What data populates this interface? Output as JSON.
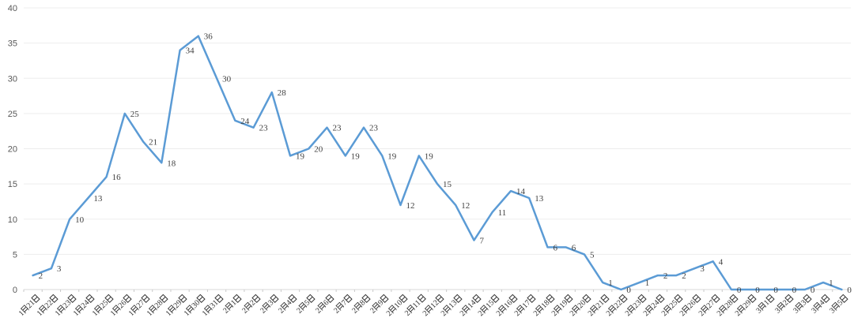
{
  "chart_data": {
    "type": "line",
    "title": "",
    "xlabel": "",
    "ylabel": "",
    "categories": [
      "1月21日",
      "1月22日",
      "1月23日",
      "1月24日",
      "1月25日",
      "1月26日",
      "1月27日",
      "1月28日",
      "1月29日",
      "1月30日",
      "1月31日",
      "2月1日",
      "2月2日",
      "2月3日",
      "2月4日",
      "2月5日",
      "2月6日",
      "2月7日",
      "2月8日",
      "2月9日",
      "2月10日",
      "2月11日",
      "2月12日",
      "2月13日",
      "2月14日",
      "2月15日",
      "2月16日",
      "2月17日",
      "2月18日",
      "2月19日",
      "2月20日",
      "2月21日",
      "2月22日",
      "2月23日",
      "2月24日",
      "2月25日",
      "2月26日",
      "2月27日",
      "2月28日",
      "2月29日",
      "3月1日",
      "3月2日",
      "3月3日",
      "3月4日",
      "3月5日"
    ],
    "values": [
      2,
      3,
      10,
      13,
      16,
      25,
      21,
      18,
      34,
      36,
      30,
      24,
      23,
      28,
      19,
      20,
      23,
      19,
      23,
      19,
      12,
      19,
      15,
      12,
      7,
      11,
      14,
      13,
      6,
      6,
      5,
      1,
      0,
      1,
      2,
      2,
      3,
      4,
      0,
      0,
      0,
      0,
      0,
      1,
      0
    ],
    "data_labels_shown": true,
    "ylim": [
      0,
      40
    ],
    "yticks": [
      0,
      5,
      10,
      15,
      20,
      25,
      30,
      35,
      40
    ],
    "grid": true,
    "legend": "none",
    "colors": {
      "line": "#5B9BD5",
      "data_label": "#404040",
      "y_axis_label": "#595959",
      "x_axis_label": "#333333",
      "gridline": "#ededed",
      "axis_line": "#d9d9d9",
      "tick": "#c9c9c9",
      "background": "#ffffff"
    }
  }
}
